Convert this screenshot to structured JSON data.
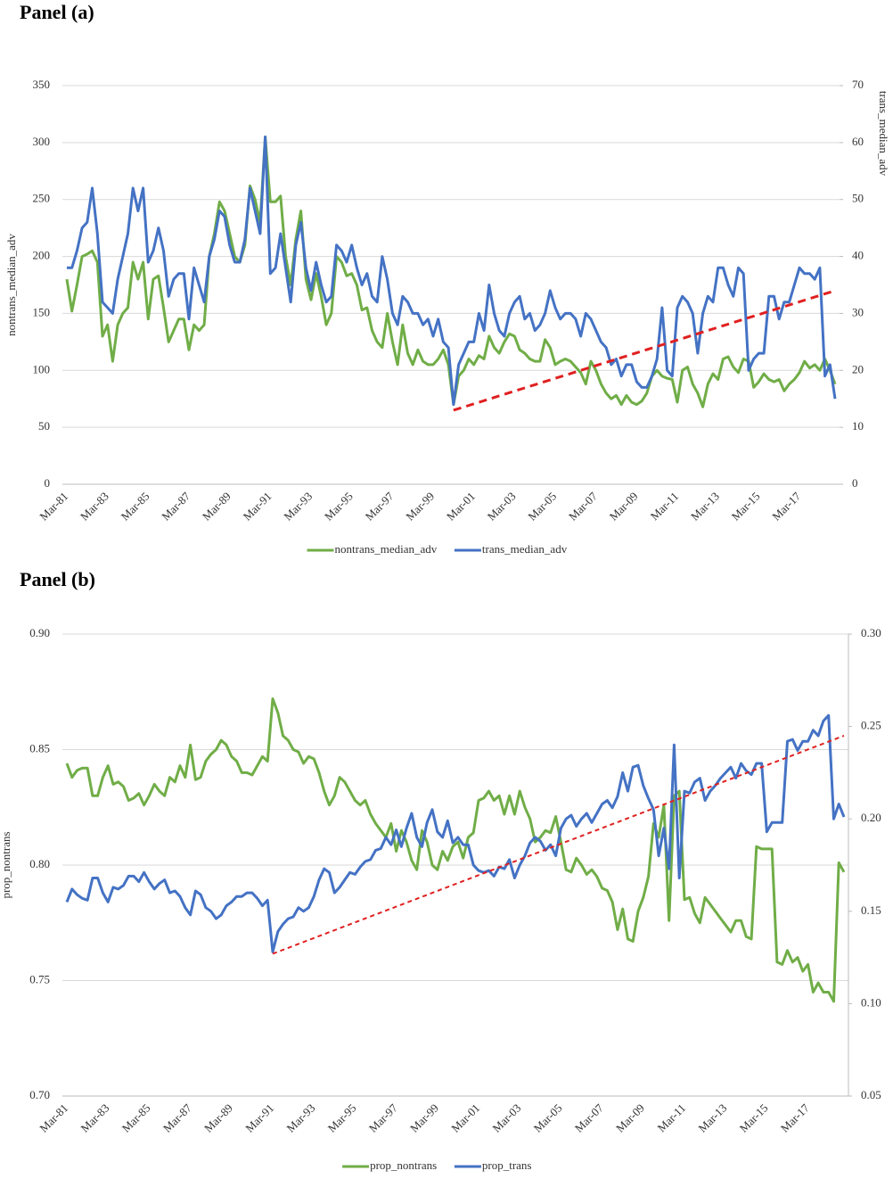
{
  "chart_data": [
    {
      "type": "line",
      "title": "Panel (a)",
      "ylabel": "nontrans_median_adv",
      "y2label": "trans_median_adv",
      "categories": [
        "Mar-81",
        null,
        null,
        null,
        null,
        null,
        null,
        null,
        "Mar-83",
        null,
        null,
        null,
        null,
        null,
        null,
        null,
        "Mar-85",
        null,
        null,
        null,
        null,
        null,
        null,
        null,
        "Mar-87",
        null,
        null,
        null,
        null,
        null,
        null,
        null,
        "Mar-89",
        null,
        null,
        null,
        null,
        null,
        null,
        null,
        "Mar-91",
        null,
        null,
        null,
        null,
        null,
        null,
        null,
        "Mar-93",
        null,
        null,
        null,
        null,
        null,
        null,
        null,
        "Mar-95",
        null,
        null,
        null,
        null,
        null,
        null,
        null,
        "Mar-97",
        null,
        null,
        null,
        null,
        null,
        null,
        null,
        "Mar-99",
        null,
        null,
        null,
        null,
        null,
        null,
        null,
        "Mar-01",
        null,
        null,
        null,
        null,
        null,
        null,
        null,
        "Mar-03",
        null,
        null,
        null,
        null,
        null,
        null,
        null,
        "Mar-05",
        null,
        null,
        null,
        null,
        null,
        null,
        null,
        "Mar-07",
        null,
        null,
        null,
        null,
        null,
        null,
        null,
        "Mar-09",
        null,
        null,
        null,
        null,
        null,
        null,
        null,
        "Mar-11",
        null,
        null,
        null,
        null,
        null,
        null,
        null,
        "Mar-13",
        null,
        null,
        null,
        null,
        null,
        null,
        null,
        "Mar-15",
        null,
        null,
        null,
        null,
        null,
        null,
        null,
        "Mar-17",
        null,
        null,
        null,
        null,
        null,
        null,
        null
      ],
      "series": [
        {
          "name": "nontrans_median_adv",
          "color": "#70ad47",
          "values": [
            180,
            152,
            175,
            200,
            202,
            205,
            195,
            130,
            140,
            108,
            140,
            150,
            155,
            195,
            180,
            195,
            145,
            180,
            183,
            155,
            125,
            135,
            145,
            145,
            118,
            140,
            135,
            140,
            200,
            220,
            248,
            240,
            220,
            200,
            195,
            210,
            262,
            250,
            230,
            305,
            248,
            248,
            253,
            200,
            175,
            215,
            240,
            180,
            162,
            185,
            165,
            140,
            150,
            200,
            195,
            183,
            185,
            175,
            153,
            155,
            135,
            125,
            120,
            150,
            125,
            105,
            140,
            115,
            105,
            118,
            108,
            105,
            105,
            110,
            118,
            105,
            70,
            95,
            100,
            110,
            105,
            113,
            110,
            130,
            120,
            115,
            125,
            132,
            130,
            118,
            115,
            110,
            108,
            108,
            127,
            120,
            105,
            108,
            110,
            108,
            103,
            98,
            88,
            108,
            100,
            88,
            80,
            75,
            78,
            70,
            78,
            72,
            70,
            73,
            80,
            95,
            100,
            95,
            93,
            92,
            72,
            100,
            103,
            88,
            80,
            68,
            88,
            97,
            92,
            110,
            112,
            103,
            98,
            110,
            108,
            85,
            90,
            97,
            92,
            90,
            92,
            82,
            88,
            92,
            98,
            108,
            102,
            105,
            100,
            110,
            100,
            88
          ]
        },
        {
          "name": "trans_median_adv",
          "color": "#4472c4",
          "axis": "y2",
          "values": [
            38,
            38,
            41,
            45,
            46,
            52,
            44,
            32,
            31,
            30,
            36,
            40,
            44,
            52,
            48,
            52,
            39,
            41,
            45,
            41,
            33,
            36,
            37,
            37,
            29,
            38,
            35,
            32,
            40,
            43,
            48,
            47,
            42,
            39,
            39,
            43,
            52,
            48,
            44,
            61,
            37,
            38,
            44,
            38,
            32,
            42,
            46,
            38,
            34,
            39,
            35,
            32,
            33,
            42,
            41,
            39,
            42,
            38,
            35,
            37,
            33,
            32,
            40,
            36,
            30,
            28,
            33,
            32,
            30,
            30,
            28,
            29,
            26,
            29,
            25,
            24,
            14,
            21,
            23,
            25,
            25,
            30,
            27,
            35,
            30,
            27,
            26,
            30,
            32,
            33,
            29,
            30,
            27,
            28,
            30,
            34,
            31,
            29,
            30,
            30,
            29,
            26,
            30,
            29,
            27,
            25,
            24,
            21,
            22,
            19,
            21,
            21,
            18,
            17,
            17,
            19,
            22,
            31,
            20,
            19,
            31,
            33,
            32,
            30,
            23,
            30,
            33,
            32,
            38,
            38,
            35,
            33,
            38,
            37,
            20,
            22,
            23,
            23,
            33,
            33,
            29,
            32,
            32,
            35,
            38,
            37,
            37,
            36,
            38,
            19,
            21,
            15
          ]
        }
      ],
      "trend": {
        "color": "#e02020",
        "axis": "y2",
        "index": [
          76,
          151
        ],
        "values": [
          13,
          34
        ]
      },
      "ylim": [
        0,
        350
      ],
      "yticks": [
        0,
        50,
        100,
        150,
        200,
        250,
        300,
        350
      ],
      "y2lim": [
        0,
        70
      ],
      "y2ticks": [
        0,
        10,
        20,
        30,
        40,
        50,
        60,
        70
      ],
      "grid": true
    },
    {
      "type": "line",
      "title": "Panel (b)",
      "ylabel": "prop_nontrans",
      "categories": [
        "Mar-81",
        null,
        null,
        null,
        null,
        null,
        null,
        null,
        "Mar-83",
        null,
        null,
        null,
        null,
        null,
        null,
        null,
        "Mar-85",
        null,
        null,
        null,
        null,
        null,
        null,
        null,
        "Mar-87",
        null,
        null,
        null,
        null,
        null,
        null,
        null,
        "Mar-89",
        null,
        null,
        null,
        null,
        null,
        null,
        null,
        "Mar-91",
        null,
        null,
        null,
        null,
        null,
        null,
        null,
        "Mar-93",
        null,
        null,
        null,
        null,
        null,
        null,
        null,
        "Mar-95",
        null,
        null,
        null,
        null,
        null,
        null,
        null,
        "Mar-97",
        null,
        null,
        null,
        null,
        null,
        null,
        null,
        "Mar-99",
        null,
        null,
        null,
        null,
        null,
        null,
        null,
        "Mar-01",
        null,
        null,
        null,
        null,
        null,
        null,
        null,
        "Mar-03",
        null,
        null,
        null,
        null,
        null,
        null,
        null,
        "Mar-05",
        null,
        null,
        null,
        null,
        null,
        null,
        null,
        "Mar-07",
        null,
        null,
        null,
        null,
        null,
        null,
        null,
        "Mar-09",
        null,
        null,
        null,
        null,
        null,
        null,
        null,
        "Mar-11",
        null,
        null,
        null,
        null,
        null,
        null,
        null,
        "Mar-13",
        null,
        null,
        null,
        null,
        null,
        null,
        null,
        "Mar-15",
        null,
        null,
        null,
        null,
        null,
        null,
        null,
        "Mar-17",
        null,
        null,
        null,
        null,
        null,
        null,
        null
      ],
      "series": [
        {
          "name": "prop_nontrans",
          "color": "#70ad47",
          "values": [
            0.844,
            0.838,
            0.841,
            0.842,
            0.842,
            0.83,
            0.83,
            0.838,
            0.843,
            0.835,
            0.836,
            0.834,
            0.828,
            0.829,
            0.831,
            0.826,
            0.83,
            0.835,
            0.832,
            0.83,
            0.838,
            0.836,
            0.843,
            0.838,
            0.852,
            0.837,
            0.838,
            0.845,
            0.848,
            0.85,
            0.854,
            0.852,
            0.847,
            0.845,
            0.84,
            0.84,
            0.839,
            0.843,
            0.847,
            0.845,
            0.872,
            0.866,
            0.856,
            0.854,
            0.85,
            0.849,
            0.844,
            0.847,
            0.846,
            0.84,
            0.832,
            0.826,
            0.83,
            0.838,
            0.836,
            0.832,
            0.828,
            0.826,
            0.828,
            0.822,
            0.818,
            0.815,
            0.812,
            0.818,
            0.806,
            0.815,
            0.81,
            0.802,
            0.798,
            0.815,
            0.81,
            0.8,
            0.798,
            0.806,
            0.802,
            0.808,
            0.81,
            0.803,
            0.812,
            0.814,
            0.828,
            0.829,
            0.832,
            0.828,
            0.83,
            0.822,
            0.83,
            0.822,
            0.832,
            0.825,
            0.82,
            0.81,
            0.812,
            0.815,
            0.814,
            0.821,
            0.81,
            0.798,
            0.797,
            0.803,
            0.8,
            0.796,
            0.798,
            0.795,
            0.79,
            0.789,
            0.784,
            0.772,
            0.781,
            0.768,
            0.767,
            0.78,
            0.786,
            0.795,
            0.818,
            0.812,
            0.826,
            0.776,
            0.83,
            0.832,
            0.785,
            0.786,
            0.779,
            0.775,
            0.786,
            0.783,
            0.78,
            0.777,
            0.774,
            0.771,
            0.776,
            0.776,
            0.769,
            0.768,
            0.808,
            0.807,
            0.807,
            0.807,
            0.758,
            0.757,
            0.763,
            0.758,
            0.76,
            0.754,
            0.757,
            0.745,
            0.749,
            0.745,
            0.745,
            0.741,
            0.801,
            0.797
          ]
        },
        {
          "name": "prop_trans",
          "color": "#4472c4",
          "axis": "y2",
          "values": [
            0.155,
            0.162,
            0.159,
            0.157,
            0.156,
            0.168,
            0.168,
            0.16,
            0.155,
            0.163,
            0.162,
            0.164,
            0.169,
            0.169,
            0.166,
            0.171,
            0.166,
            0.162,
            0.165,
            0.167,
            0.16,
            0.161,
            0.158,
            0.152,
            0.148,
            0.161,
            0.159,
            0.152,
            0.15,
            0.146,
            0.148,
            0.153,
            0.155,
            0.158,
            0.158,
            0.16,
            0.16,
            0.157,
            0.153,
            0.156,
            0.128,
            0.139,
            0.143,
            0.146,
            0.147,
            0.152,
            0.15,
            0.152,
            0.158,
            0.167,
            0.173,
            0.171,
            0.16,
            0.163,
            0.167,
            0.171,
            0.17,
            0.174,
            0.177,
            0.178,
            0.183,
            0.184,
            0.19,
            0.186,
            0.194,
            0.185,
            0.195,
            0.203,
            0.19,
            0.185,
            0.198,
            0.205,
            0.193,
            0.19,
            0.199,
            0.187,
            0.19,
            0.186,
            0.186,
            0.175,
            0.172,
            0.171,
            0.172,
            0.169,
            0.174,
            0.173,
            0.178,
            0.168,
            0.175,
            0.18,
            0.187,
            0.19,
            0.188,
            0.183,
            0.186,
            0.18,
            0.195,
            0.2,
            0.202,
            0.196,
            0.2,
            0.203,
            0.198,
            0.203,
            0.208,
            0.21,
            0.206,
            0.212,
            0.225,
            0.215,
            0.228,
            0.229,
            0.218,
            0.211,
            0.205,
            0.18,
            0.195,
            0.173,
            0.24,
            0.168,
            0.215,
            0.214,
            0.22,
            0.222,
            0.21,
            0.215,
            0.218,
            0.222,
            0.225,
            0.228,
            0.222,
            0.23,
            0.226,
            0.224,
            0.23,
            0.23,
            0.193,
            0.198,
            0.198,
            0.198,
            0.242,
            0.243,
            0.237,
            0.242,
            0.242,
            0.248,
            0.245,
            0.253,
            0.256,
            0.2,
            0.208,
            0.201
          ]
        }
      ],
      "trend": {
        "color": "#e02020",
        "axis": "y2",
        "index": [
          40,
          151
        ],
        "values": [
          0.127,
          0.245
        ]
      },
      "ylim": [
        0.7,
        0.9
      ],
      "yticks": [
        {
          "value": 0.7,
          "label": "0.70"
        },
        0.75,
        {
          "value": 0.8,
          "label": "0.80"
        },
        0.85,
        {
          "value": 0.9,
          "label": "0.90"
        }
      ],
      "y2lim": [
        0.05,
        0.3
      ],
      "y2ticks": [
        0.05,
        {
          "value": 0.1,
          "label": "0.10"
        },
        0.15,
        {
          "value": 0.2,
          "label": "0.20"
        },
        0.25,
        {
          "value": 0.3,
          "label": "0.30"
        }
      ],
      "grid": true
    }
  ]
}
